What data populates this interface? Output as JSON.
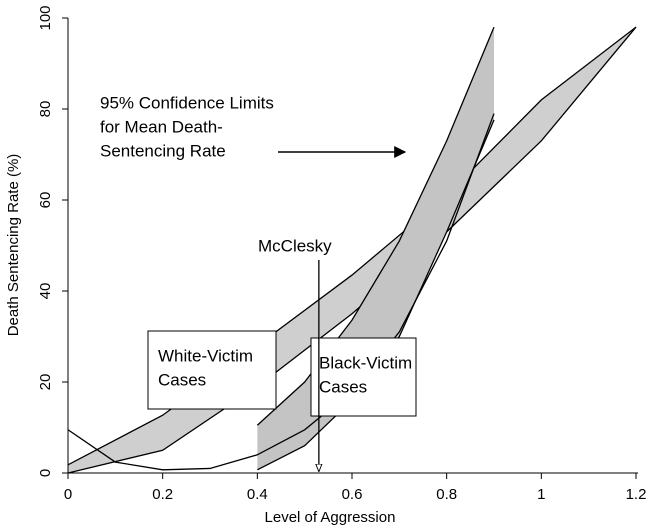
{
  "chart_data": {
    "type": "band",
    "xlabel": "Level of Aggression",
    "ylabel": "Death Sentencing Rate (%)",
    "xlim": [
      0,
      1.2
    ],
    "ylim": [
      0,
      100
    ],
    "xticks": [
      0,
      0.2,
      0.4,
      0.6,
      0.8,
      1,
      1.2
    ],
    "yticks": [
      0,
      20,
      40,
      60,
      80,
      100
    ],
    "series": [
      {
        "name": "White-Victim Cases",
        "color": "#cfcfcf",
        "x": [
          0,
          0.2,
          0.4,
          0.6,
          0.8,
          1.0,
          1.2
        ],
        "upper": [
          1.8,
          12.7,
          28,
          43.5,
          61,
          82,
          98
        ],
        "lower": [
          0,
          5,
          19,
          35,
          53,
          73,
          98
        ]
      },
      {
        "name": "Black-Victim Cases",
        "color": "#c4c4c4",
        "x": [
          0.4,
          0.5,
          0.6,
          0.7,
          0.8,
          0.9
        ],
        "upper": [
          10.5,
          20,
          33.6,
          51,
          73,
          98
        ],
        "lower": [
          0.7,
          6,
          16,
          30,
          53,
          77.6
        ]
      }
    ],
    "curve": {
      "x": [
        0,
        0.1,
        0.2,
        0.3,
        0.4,
        0.5,
        0.6,
        0.7,
        0.8,
        0.9
      ],
      "values": [
        9.5,
        2.4,
        0.7,
        1,
        4,
        9.5,
        18,
        31,
        51,
        79
      ]
    },
    "annotations": {
      "confidence": [
        "95% Confidence Limits",
        "for Mean Death-",
        "Sentencing Rate"
      ],
      "mcclesky": "McClesky",
      "mcclesky_x": 0.53,
      "white_box": [
        "White-Victim",
        "Cases"
      ],
      "black_box": [
        "Black-Victim",
        "Cases"
      ]
    }
  }
}
